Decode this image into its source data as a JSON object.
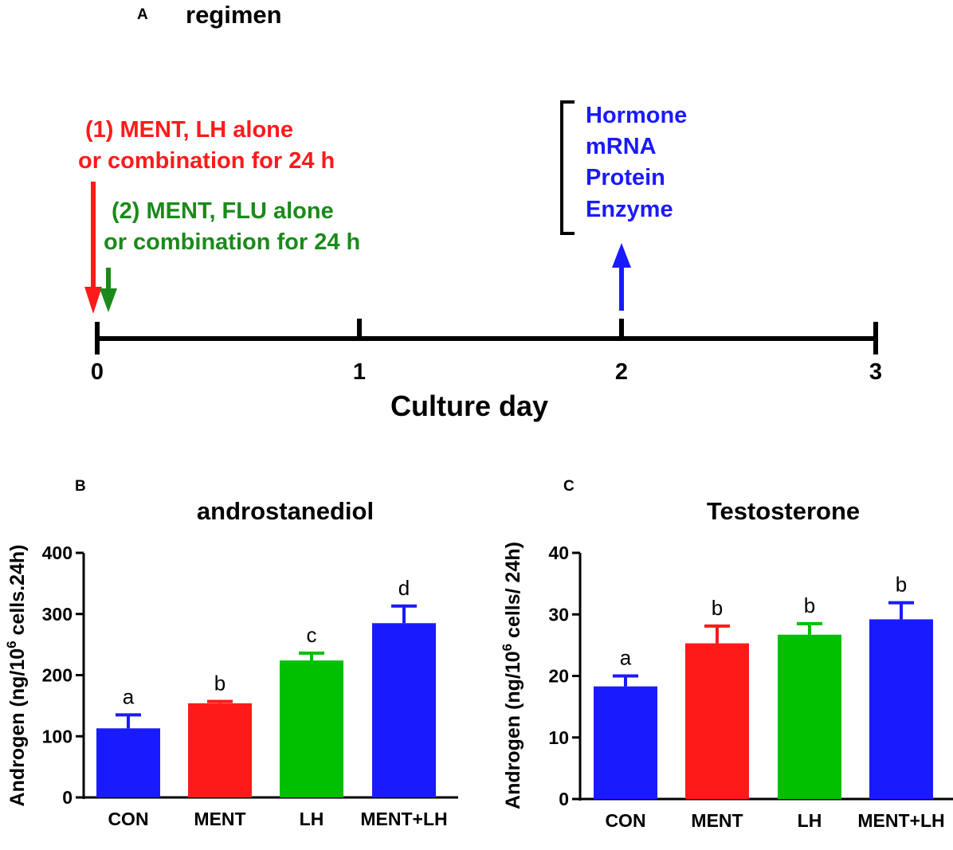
{
  "panel_a": {
    "letter": "A",
    "title": "regimen",
    "treatment1": {
      "line1": "(1) MENT,  LH alone",
      "line2": "or combination for 24 h",
      "color": "#ff1a1a"
    },
    "treatment2": {
      "line1": "(2) MENT,  FLU alone",
      "line2": "or combination for 24 h",
      "color": "#1a8a1a"
    },
    "measures": {
      "items": [
        "Hormone",
        "mRNA",
        "Protein",
        "Enzyme"
      ],
      "color": "#1a1aff"
    },
    "timeline": {
      "ticks": [
        "0",
        "1",
        "2",
        "3"
      ],
      "xlabel": "Culture day",
      "treatment_day": 0,
      "measure_day": 2
    }
  },
  "chart_data": [
    {
      "type": "bar",
      "panel": "B",
      "title": "androstanediol",
      "categories": [
        "CON",
        "MENT",
        "LH",
        "MENT+LH"
      ],
      "values": [
        113,
        154,
        224,
        285
      ],
      "errors": [
        22,
        3,
        12,
        28
      ],
      "letters": [
        "a",
        "b",
        "c",
        "d"
      ],
      "colors": [
        "#1a1aff",
        "#ff1a1a",
        "#00c000",
        "#1a1aff"
      ],
      "ylabel_pre": "Androgen (ng/10",
      "ylabel_sup": "6",
      "ylabel_post": " cells.24h)",
      "ylim": [
        0,
        400
      ],
      "yticks": [
        0,
        100,
        200,
        300,
        400
      ],
      "ytick_labels": [
        "0",
        "100",
        "200",
        "300",
        "400"
      ]
    },
    {
      "type": "bar",
      "panel": "C",
      "title": "Testosterone",
      "categories": [
        "CON",
        "MENT",
        "LH",
        "MENT+LH"
      ],
      "values": [
        18.3,
        25.3,
        26.7,
        29.2
      ],
      "errors": [
        1.7,
        2.8,
        1.8,
        2.7
      ],
      "letters": [
        "a",
        "b",
        "b",
        "b"
      ],
      "colors": [
        "#1a1aff",
        "#ff1a1a",
        "#00c000",
        "#1a1aff"
      ],
      "ylabel_pre": "Androgen (ng/10",
      "ylabel_sup": "6",
      "ylabel_post": " cells/ 24h)",
      "ylim": [
        0,
        40
      ],
      "yticks": [
        0,
        10,
        20,
        30,
        40
      ],
      "ytick_labels": [
        "0",
        "10",
        "20",
        "30",
        "40"
      ]
    }
  ]
}
